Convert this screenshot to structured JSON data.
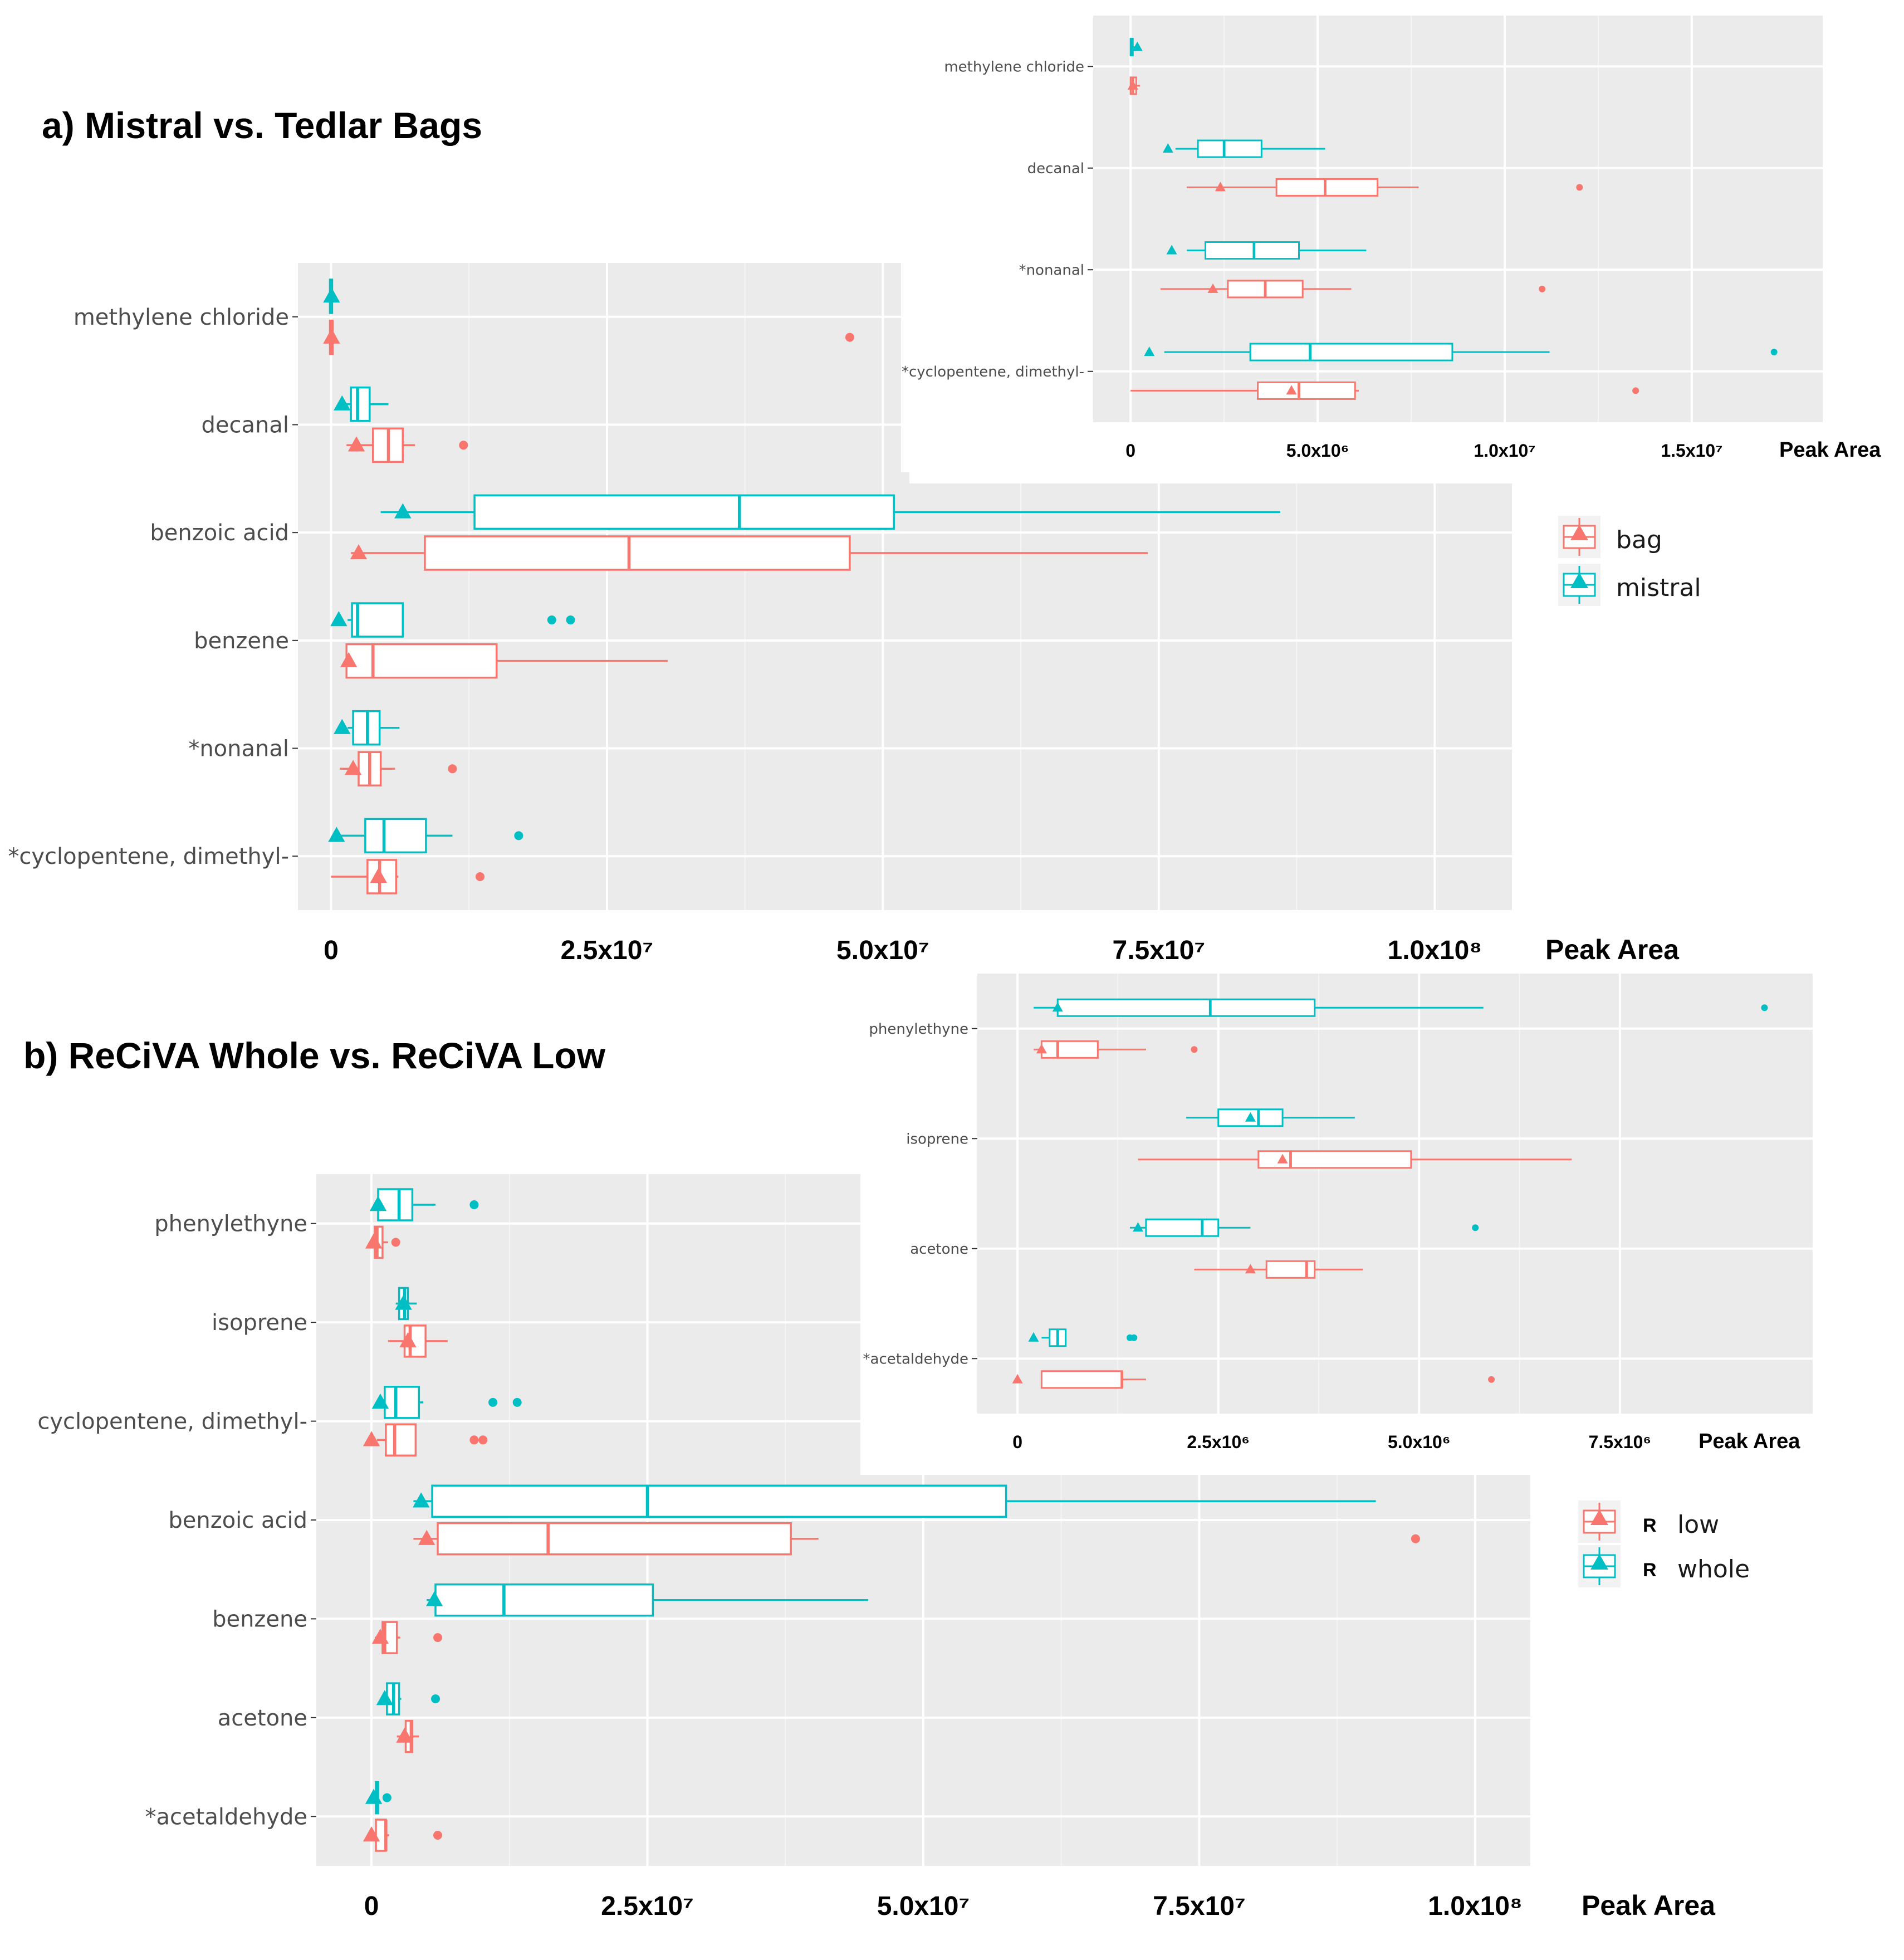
{
  "colors": {
    "bag": "#F8766D",
    "mistral": "#00BFC4",
    "panel": "#EBEBEB",
    "grid": "#FFFFFF",
    "text": "#4D4D4D"
  },
  "legends": [
    {
      "entries": [
        "bag",
        "mistral"
      ]
    },
    {
      "marker_letter": "R",
      "entries": [
        "low",
        "whole"
      ]
    }
  ],
  "chart_data": [
    {
      "id": "a_main",
      "type": "boxplot",
      "title": "a) Mistral vs. Tedlar Bags",
      "xlabel": "Peak Area",
      "xlim": [
        -3000000,
        107000000
      ],
      "xticks": [
        0,
        25000000,
        50000000,
        75000000,
        100000000
      ],
      "xtick_labels": [
        "0",
        "2.5x10⁷",
        "5.0x10⁷",
        "7.5x10⁷",
        "1.0x10⁸"
      ],
      "categories": [
        "methylene chloride",
        "decanal",
        "benzoic acid",
        "benzene",
        "*nonanal",
        "*cyclopentene, dimethyl-"
      ],
      "series": [
        {
          "name": "mistral",
          "boxes": [
            {
              "lo": -200000,
              "q1": -100000,
              "med": 0,
              "q3": 100000,
              "hi": 200000,
              "mean": 50000,
              "outliers": []
            },
            {
              "lo": 1200000,
              "q1": 1800000,
              "med": 2400000,
              "q3": 3500000,
              "hi": 5200000,
              "mean": 1000000,
              "outliers": []
            },
            {
              "lo": 4500000,
              "q1": 13000000,
              "med": 37000000,
              "q3": 51000000,
              "hi": 86000000,
              "mean": 6500000,
              "outliers": []
            },
            {
              "lo": 1500000,
              "q1": 1900000,
              "med": 2400000,
              "q3": 6500000,
              "hi": 6500000,
              "mean": 700000,
              "outliers": [
                20000000,
                21700000
              ]
            },
            {
              "lo": 1500000,
              "q1": 2000000,
              "med": 3300000,
              "q3": 4400000,
              "hi": 6200000,
              "mean": 1000000,
              "outliers": []
            },
            {
              "lo": 900000,
              "q1": 3100000,
              "med": 4800000,
              "q3": 8600000,
              "hi": 11000000,
              "mean": 500000,
              "outliers": [
                17000000
              ]
            }
          ]
        },
        {
          "name": "bag",
          "boxes": [
            {
              "lo": -300000,
              "q1": -100000,
              "med": 0,
              "q3": 150000,
              "hi": 300000,
              "mean": 50000,
              "outliers": [
                47000000
              ]
            },
            {
              "lo": 1400000,
              "q1": 3800000,
              "med": 5200000,
              "q3": 6500000,
              "hi": 7600000,
              "mean": 2300000,
              "outliers": [
                12000000
              ]
            },
            {
              "lo": 1800000,
              "q1": 8500000,
              "med": 27000000,
              "q3": 47000000,
              "hi": 74000000,
              "mean": 2500000,
              "outliers": []
            },
            {
              "lo": 1300000,
              "q1": 1400000,
              "med": 3800000,
              "q3": 15000000,
              "hi": 30500000,
              "mean": 1600000,
              "outliers": []
            },
            {
              "lo": 800000,
              "q1": 2500000,
              "med": 3500000,
              "q3": 4500000,
              "hi": 5800000,
              "mean": 2000000,
              "outliers": [
                11000000
              ]
            },
            {
              "lo": 0,
              "q1": 3300000,
              "med": 4400000,
              "q3": 5900000,
              "hi": 6100000,
              "mean": 4300000,
              "outliers": [
                13500000
              ]
            }
          ]
        }
      ]
    },
    {
      "id": "a_inset",
      "type": "boxplot",
      "xlabel": "Peak Area",
      "xlim": [
        -1000000,
        18500000
      ],
      "xticks": [
        0,
        5000000,
        10000000,
        15000000
      ],
      "xtick_labels": [
        "0",
        "5.0x10⁶",
        "1.0x10⁷",
        "1.5x10⁷"
      ],
      "categories": [
        "methylene chloride",
        "decanal",
        "*nonanal",
        "*cyclopentene, dimethyl-"
      ],
      "series": [
        {
          "name": "mistral",
          "boxes": [
            {
              "lo": 0,
              "q1": 0,
              "med": 30000,
              "q3": 60000,
              "hi": 100000,
              "mean": 180000,
              "outliers": []
            },
            {
              "lo": 1200000,
              "q1": 1800000,
              "med": 2500000,
              "q3": 3500000,
              "hi": 5200000,
              "mean": 1000000,
              "outliers": []
            },
            {
              "lo": 1500000,
              "q1": 2000000,
              "med": 3300000,
              "q3": 4500000,
              "hi": 6300000,
              "mean": 1100000,
              "outliers": []
            },
            {
              "lo": 900000,
              "q1": 3200000,
              "med": 4800000,
              "q3": 8600000,
              "hi": 11200000,
              "mean": 500000,
              "outliers": [
                17200000
              ]
            }
          ]
        },
        {
          "name": "bag",
          "boxes": [
            {
              "lo": 0,
              "q1": 0,
              "med": 60000,
              "q3": 150000,
              "hi": 250000,
              "mean": 60000,
              "outliers": []
            },
            {
              "lo": 1500000,
              "q1": 3900000,
              "med": 5200000,
              "q3": 6600000,
              "hi": 7700000,
              "mean": 2400000,
              "outliers": [
                12000000
              ]
            },
            {
              "lo": 800000,
              "q1": 2600000,
              "med": 3600000,
              "q3": 4600000,
              "hi": 5900000,
              "mean": 2200000,
              "outliers": [
                11000000
              ]
            },
            {
              "lo": 0,
              "q1": 3400000,
              "med": 4500000,
              "q3": 6000000,
              "hi": 6100000,
              "mean": 4300000,
              "outliers": [
                13500000
              ]
            }
          ]
        }
      ]
    },
    {
      "id": "b_main",
      "type": "boxplot",
      "title": "b)  ReCiVA Whole vs. ReCiVA Low",
      "xlabel": "Peak Area",
      "xlim": [
        -5000000,
        105000000
      ],
      "xticks": [
        0,
        25000000,
        50000000,
        75000000,
        100000000
      ],
      "xtick_labels": [
        "0",
        "2.5x10⁷",
        "5.0x10⁷",
        "7.5x10⁷",
        "1.0x10⁸"
      ],
      "categories": [
        "phenylethyne",
        "isoprene",
        "cyclopentene, dimethyl-",
        "benzoic acid",
        "benzene",
        "acetone",
        "*acetaldehyde"
      ],
      "series": [
        {
          "name": "whole",
          "boxes": [
            {
              "lo": 300000,
              "q1": 600000,
              "med": 2500000,
              "q3": 3700000,
              "hi": 5800000,
              "mean": 600000,
              "outliers": [
                9300000
              ]
            },
            {
              "lo": 2200000,
              "q1": 2500000,
              "med": 3000000,
              "q3": 3300000,
              "hi": 4100000,
              "mean": 2900000,
              "outliers": []
            },
            {
              "lo": 500000,
              "q1": 1200000,
              "med": 2200000,
              "q3": 4300000,
              "hi": 4700000,
              "mean": 800000,
              "outliers": [
                11000000,
                13200000
              ]
            },
            {
              "lo": 3800000,
              "q1": 5500000,
              "med": 25000000,
              "q3": 57500000,
              "hi": 91000000,
              "mean": 4500000,
              "outliers": []
            },
            {
              "lo": 5000000,
              "q1": 5800000,
              "med": 12000000,
              "q3": 25500000,
              "hi": 45000000,
              "mean": 5700000,
              "outliers": []
            },
            {
              "lo": 1000000,
              "q1": 1400000,
              "med": 2000000,
              "q3": 2500000,
              "hi": 2700000,
              "mean": 1200000,
              "outliers": [
                5800000
              ]
            },
            {
              "lo": 0,
              "q1": 400000,
              "med": 500000,
              "q3": 600000,
              "hi": 600000,
              "mean": 200000,
              "outliers": [
                1400000
              ]
            }
          ]
        },
        {
          "name": "low",
          "boxes": [
            {
              "lo": 200000,
              "q1": 300000,
              "med": 500000,
              "q3": 1000000,
              "hi": 1500000,
              "mean": 200000,
              "outliers": [
                2200000
              ]
            },
            {
              "lo": 1500000,
              "q1": 3000000,
              "med": 3500000,
              "q3": 4900000,
              "hi": 6900000,
              "mean": 3300000,
              "outliers": []
            },
            {
              "lo": 500000,
              "q1": 1300000,
              "med": 2100000,
              "q3": 4000000,
              "hi": 4000000,
              "mean": 0,
              "outliers": [
                9300000,
                10100000
              ]
            },
            {
              "lo": 3800000,
              "q1": 6000000,
              "med": 16000000,
              "q3": 38000000,
              "hi": 40500000,
              "mean": 5000000,
              "outliers": [
                94600000
              ]
            },
            {
              "lo": 300000,
              "q1": 1000000,
              "med": 1200000,
              "q3": 2300000,
              "hi": 2600000,
              "mean": 800000,
              "outliers": [
                6000000
              ]
            },
            {
              "lo": 2300000,
              "q1": 3100000,
              "med": 3600000,
              "q3": 3700000,
              "hi": 4300000,
              "mean": 3000000,
              "outliers": []
            },
            {
              "lo": 300000,
              "q1": 400000,
              "med": 1300000,
              "q3": 1300000,
              "hi": 1600000,
              "mean": 0,
              "outliers": [
                6000000
              ]
            }
          ]
        }
      ]
    },
    {
      "id": "b_inset",
      "type": "boxplot",
      "xlabel": "Peak Area",
      "xlim": [
        -500000,
        9900000
      ],
      "xticks": [
        0,
        2500000,
        5000000,
        7500000
      ],
      "xtick_labels": [
        "0",
        "2.5x10⁶",
        "5.0x10⁶",
        "7.5x10⁶"
      ],
      "categories": [
        "phenylethyne",
        "isoprene",
        "acetone",
        "*acetaldehyde"
      ],
      "series": [
        {
          "name": "whole",
          "boxes": [
            {
              "lo": 200000,
              "q1": 500000,
              "med": 2400000,
              "q3": 3700000,
              "hi": 5800000,
              "mean": 500000,
              "outliers": [
                9300000
              ]
            },
            {
              "lo": 2100000,
              "q1": 2500000,
              "med": 3000000,
              "q3": 3300000,
              "hi": 4200000,
              "mean": 2900000,
              "outliers": []
            },
            {
              "lo": 1400000,
              "q1": 1600000,
              "med": 2300000,
              "q3": 2500000,
              "hi": 2900000,
              "mean": 1500000,
              "outliers": [
                5700000
              ]
            },
            {
              "lo": 300000,
              "q1": 400000,
              "med": 500000,
              "q3": 600000,
              "hi": 600000,
              "mean": 200000,
              "outliers": [
                1400000,
                1450000
              ]
            }
          ]
        },
        {
          "name": "low",
          "boxes": [
            {
              "lo": 200000,
              "q1": 300000,
              "med": 500000,
              "q3": 1000000,
              "hi": 1600000,
              "mean": 300000,
              "outliers": [
                2200000
              ]
            },
            {
              "lo": 1500000,
              "q1": 3000000,
              "med": 3400000,
              "q3": 4900000,
              "hi": 6900000,
              "mean": 3300000,
              "outliers": []
            },
            {
              "lo": 2200000,
              "q1": 3100000,
              "med": 3600000,
              "q3": 3700000,
              "hi": 4300000,
              "mean": 2900000,
              "outliers": []
            },
            {
              "lo": 300000,
              "q1": 300000,
              "med": 1300000,
              "q3": 1300000,
              "hi": 1600000,
              "mean": 0,
              "outliers": [
                5900000
              ]
            }
          ]
        }
      ]
    }
  ]
}
